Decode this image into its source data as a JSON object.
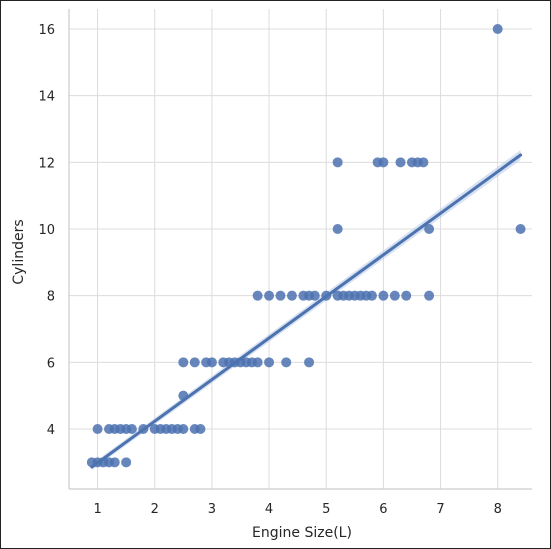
{
  "chart_data": {
    "type": "scatter",
    "title": "",
    "xlabel": "Engine Size(L)",
    "ylabel": "Cylinders",
    "xlim": [
      0.5,
      8.6
    ],
    "ylim": [
      2.2,
      16.6
    ],
    "xticks": [
      1,
      2,
      3,
      4,
      5,
      6,
      7,
      8
    ],
    "yticks": [
      4,
      6,
      8,
      10,
      12,
      14,
      16
    ],
    "grid": true,
    "legend": "none",
    "colors": {
      "points": "#4c72b0",
      "line": "#4c72b0",
      "band": "#aec4e4",
      "grid": "#dcdcdc",
      "axes": "#cccccc"
    },
    "series": [
      {
        "points": [
          [
            0.9,
            3
          ],
          [
            1.0,
            3
          ],
          [
            1.0,
            4
          ],
          [
            1.1,
            3
          ],
          [
            1.2,
            3
          ],
          [
            1.3,
            3
          ],
          [
            1.5,
            3
          ],
          [
            1.2,
            4
          ],
          [
            1.3,
            4
          ],
          [
            1.4,
            4
          ],
          [
            1.5,
            4
          ],
          [
            1.6,
            4
          ],
          [
            1.8,
            4
          ],
          [
            2.0,
            4
          ],
          [
            2.1,
            4
          ],
          [
            2.2,
            4
          ],
          [
            2.3,
            4
          ],
          [
            2.4,
            4
          ],
          [
            2.5,
            4
          ],
          [
            2.7,
            4
          ],
          [
            2.8,
            4
          ],
          [
            2.5,
            5
          ],
          [
            2.5,
            6
          ],
          [
            2.7,
            6
          ],
          [
            2.9,
            6
          ],
          [
            3.0,
            6
          ],
          [
            3.2,
            6
          ],
          [
            3.3,
            6
          ],
          [
            3.4,
            6
          ],
          [
            3.5,
            6
          ],
          [
            3.6,
            6
          ],
          [
            3.7,
            6
          ],
          [
            3.8,
            6
          ],
          [
            4.0,
            6
          ],
          [
            4.3,
            6
          ],
          [
            4.7,
            6
          ],
          [
            3.8,
            8
          ],
          [
            4.0,
            8
          ],
          [
            4.2,
            8
          ],
          [
            4.4,
            8
          ],
          [
            4.6,
            8
          ],
          [
            4.7,
            8
          ],
          [
            4.8,
            8
          ],
          [
            5.0,
            8
          ],
          [
            5.2,
            8
          ],
          [
            5.3,
            8
          ],
          [
            5.4,
            8
          ],
          [
            5.5,
            8
          ],
          [
            5.6,
            8
          ],
          [
            5.7,
            8
          ],
          [
            5.8,
            8
          ],
          [
            6.0,
            8
          ],
          [
            6.2,
            8
          ],
          [
            6.4,
            8
          ],
          [
            6.8,
            8
          ],
          [
            5.2,
            10
          ],
          [
            6.8,
            10
          ],
          [
            8.4,
            10
          ],
          [
            5.2,
            12
          ],
          [
            5.9,
            12
          ],
          [
            6.0,
            12
          ],
          [
            6.3,
            12
          ],
          [
            6.5,
            12
          ],
          [
            6.6,
            12
          ],
          [
            6.7,
            12
          ],
          [
            8.0,
            16
          ]
        ]
      }
    ],
    "regression": {
      "x": [
        0.9,
        8.4
      ],
      "y": [
        2.86,
        12.22
      ]
    }
  }
}
